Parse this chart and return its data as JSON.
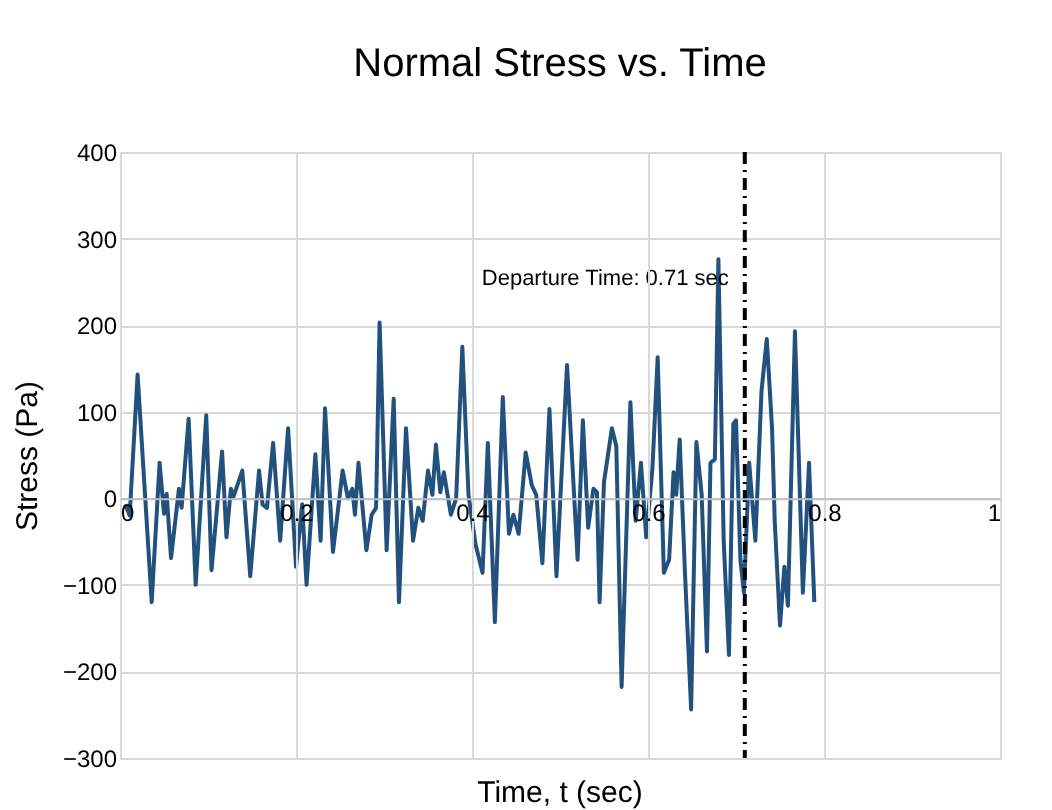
{
  "chart_data": {
    "type": "line",
    "title": "Normal Stress vs. Time",
    "xlabel": "Time, t (sec)",
    "ylabel": "Stress (Pa)",
    "series": [
      {
        "color": "#23517e",
        "x": [
          0.006,
          0.011,
          0.02,
          0.036,
          0.045,
          0.05,
          0.053,
          0.058,
          0.067,
          0.07,
          0.078,
          0.086,
          0.098,
          0.104,
          0.116,
          0.121,
          0.126,
          0.129,
          0.139,
          0.148,
          0.158,
          0.162,
          0.167,
          0.174,
          0.182,
          0.191,
          0.2,
          0.207,
          0.212,
          0.222,
          0.228,
          0.233,
          0.242,
          0.253,
          0.259,
          0.264,
          0.267,
          0.271,
          0.28,
          0.286,
          0.291,
          0.295,
          0.303,
          0.311,
          0.317,
          0.325,
          0.333,
          0.339,
          0.344,
          0.35,
          0.355,
          0.359,
          0.364,
          0.368,
          0.376,
          0.382,
          0.389,
          0.396,
          0.404,
          0.412,
          0.418,
          0.426,
          0.435,
          0.442,
          0.447,
          0.453,
          0.461,
          0.468,
          0.473,
          0.48,
          0.488,
          0.496,
          0.508,
          0.52,
          0.526,
          0.532,
          0.538,
          0.542,
          0.545,
          0.55,
          0.559,
          0.564,
          0.57,
          0.58,
          0.586,
          0.592,
          0.598,
          0.605,
          0.611,
          0.618,
          0.624,
          0.629,
          0.632,
          0.636,
          0.642,
          0.649,
          0.655,
          0.661,
          0.667,
          0.671,
          0.676,
          0.68,
          0.686,
          0.692,
          0.697,
          0.7,
          0.705,
          0.709,
          0.715,
          0.722,
          0.729,
          0.735,
          0.741,
          0.744,
          0.75,
          0.755,
          0.759,
          0.767,
          0.776,
          0.783,
          0.789
        ],
        "values": [
          -7,
          -20,
          143,
          -120,
          41,
          -18,
          5,
          -69,
          11,
          -11,
          92,
          -100,
          96,
          -83,
          54,
          -45,
          11,
          2,
          32,
          -90,
          32,
          -7,
          -11,
          64,
          -49,
          81,
          -79,
          -7,
          -100,
          51,
          -49,
          104,
          -62,
          32,
          0,
          11,
          -19,
          41,
          -60,
          -19,
          -11,
          203,
          -60,
          115,
          -120,
          81,
          -49,
          -11,
          -26,
          32,
          4,
          62,
          7,
          30,
          -19,
          0,
          175,
          4,
          -53,
          -86,
          64,
          -143,
          117,
          -41,
          -19,
          -41,
          53,
          15,
          4,
          -75,
          103,
          -90,
          154,
          -71,
          90,
          -34,
          11,
          7,
          -120,
          19,
          81,
          60,
          -218,
          111,
          -26,
          41,
          -45,
          34,
          163,
          -86,
          -71,
          30,
          4,
          68,
          -86,
          -244,
          65,
          4,
          -177,
          41,
          45,
          276,
          -49,
          -181,
          86,
          90,
          -71,
          -109,
          41,
          -49,
          124,
          184,
          80,
          -26,
          -147,
          -79,
          -124,
          193,
          -109,
          41,
          -120
        ]
      }
    ],
    "xlim": [
      0,
      1
    ],
    "xticks": [
      0,
      0.2,
      0.4,
      0.6,
      0.8,
      1
    ],
    "ylim": [
      -300,
      400
    ],
    "yticks": [
      -300,
      -200,
      -100,
      0,
      100,
      200,
      300,
      400
    ],
    "grid": true,
    "ref_lines": [
      {
        "axis": "x",
        "value": 0.71,
        "label": "Departure Time: 0.71 sec",
        "color": "#000000",
        "line_style": "dashed"
      }
    ]
  }
}
